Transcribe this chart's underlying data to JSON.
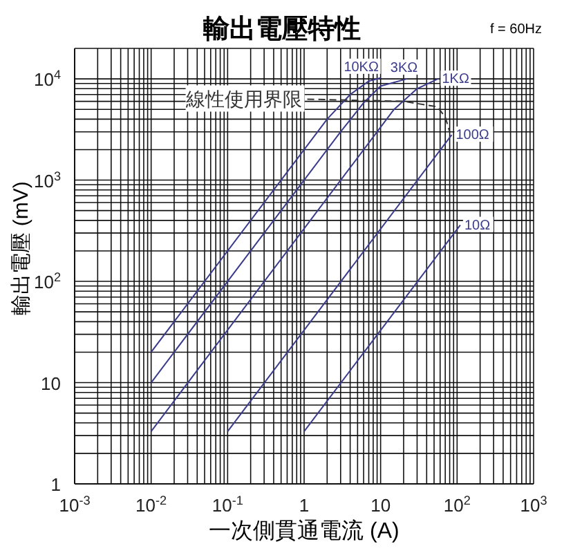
{
  "chart_data": {
    "type": "line",
    "title": "輸出電壓特性",
    "xlabel": "一次側貫通電流 (A)",
    "ylabel": "輸出電壓 (mV)",
    "annotations": [
      "f = 60Hz"
    ],
    "log": "xy",
    "grid": true,
    "marker": "none",
    "xlim": [
      0.001,
      1000
    ],
    "ylim": [
      1,
      20000
    ],
    "xticks": [
      {
        "value": 0.001,
        "label": "10$^{-3}$"
      },
      {
        "value": 0.01,
        "label": "10$^{-2}$"
      },
      {
        "value": 0.1,
        "label": "10$^{-1}$"
      },
      1,
      10,
      {
        "value": 100,
        "label": "10$^{2}$"
      },
      {
        "value": 1000,
        "label": "10$^{3}$"
      }
    ],
    "yticks": [
      1,
      10,
      {
        "value": 100,
        "label": "10$^{2}$"
      },
      {
        "value": 1000,
        "label": "10$^{3}$"
      },
      {
        "value": 10000,
        "label": "10$^{4}$"
      }
    ],
    "series": [
      {
        "name": "10KΩ",
        "color": "#3b3b8c",
        "x": [
          0.01,
          2,
          4,
          7,
          10
        ],
        "values": [
          20,
          4000,
          7000,
          9500,
          10200
        ]
      },
      {
        "name": "3KΩ",
        "color": "#3b3b8c",
        "x": [
          0.01,
          3,
          6,
          10,
          22
        ],
        "values": [
          10,
          3000,
          5800,
          8500,
          10000
        ]
      },
      {
        "name": "1KΩ",
        "color": "#3b3b8c",
        "x": [
          0.01,
          15,
          30,
          56
        ],
        "values": [
          3.3,
          5000,
          8000,
          10000
        ]
      },
      {
        "name": "100Ω",
        "color": "#3b3b8c",
        "x": [
          0.1,
          85
        ],
        "values": [
          3.3,
          2800
        ]
      },
      {
        "name": "10Ω",
        "color": "#3b3b8c",
        "x": [
          1,
          110
        ],
        "values": [
          3.3,
          360
        ]
      },
      {
        "name": "線性使用界限",
        "color": "#333333",
        "line_style": "dashed",
        "x": [
          1.1,
          20,
          55,
          70,
          80
        ],
        "values": [
          6300,
          6000,
          5300,
          4200,
          3000
        ]
      }
    ]
  }
}
